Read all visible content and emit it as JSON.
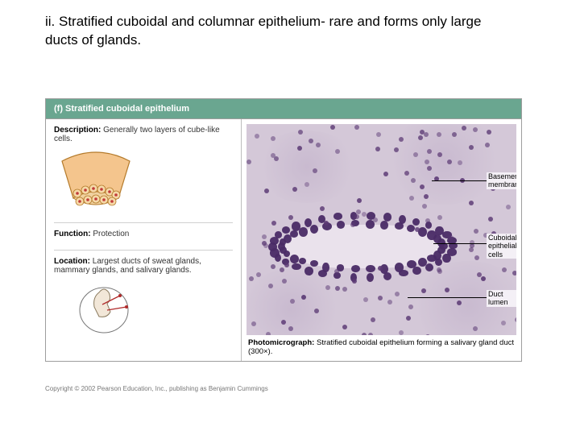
{
  "heading": "ii.   Stratified cuboidal and columnar epithelium- rare and forms only large ducts of glands.",
  "figure": {
    "titlebar": "(f) Stratified cuboidal epithelium",
    "left": {
      "description_label": "Description:",
      "description_text": " Generally two layers of cube-like cells.",
      "function_label": "Function:",
      "function_text": " Protection",
      "location_label": "Location:",
      "location_text": " Largest ducts of sweat glands, mammary glands, and salivary glands.",
      "wedge_outer_fill": "#f4c58d",
      "wedge_outer_stroke": "#b47a2a",
      "cell_fill": "#f6d9a8",
      "cell_stroke": "#b47a2a",
      "nucleus_fill": "#c03a3a"
    },
    "right": {
      "callouts": {
        "basement": "Basement membrane",
        "cells": "Cuboidal epithelial cells",
        "lumen": "Duct lumen"
      },
      "caption_label": "Photomicrograph:",
      "caption_text": " Stratified cuboidal epithelium forming a salivary gland duct (300×)."
    }
  },
  "copyright": "Copyright © 2002 Pearson Education, Inc., publishing as Benjamin Cummings"
}
